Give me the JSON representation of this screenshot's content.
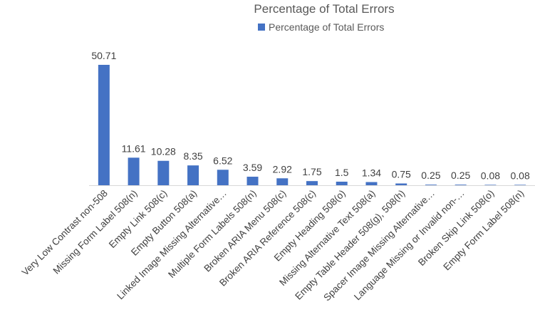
{
  "chart_data": {
    "type": "bar",
    "title": "Percentage of Total Errors",
    "legend": {
      "position": "top",
      "entries": [
        "Percentage of Total Errors"
      ]
    },
    "categories": [
      "Very Low Contrast non-508",
      "Missing Form Label 508(n)",
      "Empty Link 508(c)",
      "Empty Button 508(a)",
      "Linked Image Missing Alternative…",
      "Multiple Form Labels 508(n)",
      "Broken ARIA Menu 508(c)",
      "Broken ARIA Reference 508(c)",
      "Empty Heading 508(o)",
      "Missing Alternative Text 508(a)",
      "Empty Table Header 508(g), 508(h)",
      "Spacer Image Missing Alternative…",
      "Language Missing or Invalid non-…",
      "Broken Skip Link 508(o)",
      "Empty Form Label 508(n)"
    ],
    "series": [
      {
        "name": "Percentage of Total Errors",
        "values": [
          50.71,
          11.61,
          10.28,
          8.35,
          6.52,
          3.59,
          2.92,
          1.75,
          1.5,
          1.34,
          0.75,
          0.25,
          0.25,
          0.08,
          0.08
        ]
      }
    ],
    "data_labels": [
      "50.71",
      "11.61",
      "10.28",
      "8.35",
      "6.52",
      "3.59",
      "2.92",
      "1.75",
      "1.5",
      "1.34",
      "0.75",
      "0.25",
      "0.25",
      "0.08",
      "0.08"
    ],
    "ylim": [
      0,
      50.71
    ],
    "grid": false,
    "colors": {
      "bar": "#4472c4",
      "axis": "#d9d9d9",
      "text": "#404040"
    }
  }
}
